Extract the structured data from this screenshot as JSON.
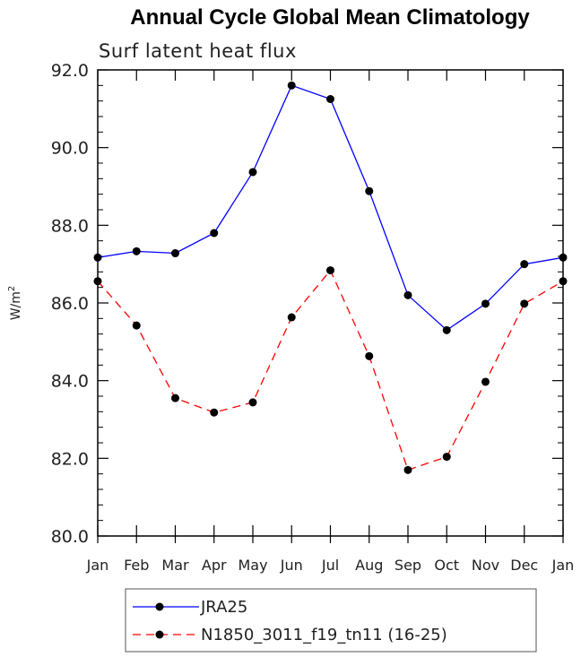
{
  "chart_data": {
    "type": "line",
    "title": "Annual Cycle Global Mean Climatology",
    "subtitle": "Surf latent heat flux",
    "ylabel_main": "W/m",
    "ylabel_sup": "2",
    "xlabel": "",
    "categories": [
      "Jan",
      "Feb",
      "Mar",
      "Apr",
      "May",
      "Jun",
      "Jul",
      "Aug",
      "Sep",
      "Oct",
      "Nov",
      "Dec",
      "Jan"
    ],
    "ylim": [
      80.0,
      92.0
    ],
    "yticks": [
      80.0,
      82.0,
      84.0,
      86.0,
      88.0,
      90.0,
      92.0
    ],
    "ytick_labels": [
      "80.0",
      "82.0",
      "84.0",
      "86.0",
      "88.0",
      "90.0",
      "92.0"
    ],
    "grid": false,
    "legend_position": "bottom",
    "series": [
      {
        "name": "JRA25",
        "color": "#0000ff",
        "dash": "solid",
        "values": [
          87.17,
          87.33,
          87.28,
          87.8,
          89.37,
          91.6,
          91.25,
          88.88,
          86.2,
          85.3,
          85.98,
          87.0,
          87.17
        ]
      },
      {
        "name": "N1850_3011_f19_tn11 (16-25)",
        "color": "#ff0000",
        "dash": "dashed",
        "values": [
          86.56,
          85.42,
          83.55,
          83.18,
          83.44,
          85.63,
          86.84,
          84.63,
          81.7,
          82.04,
          83.97,
          85.98,
          86.56
        ]
      }
    ]
  }
}
